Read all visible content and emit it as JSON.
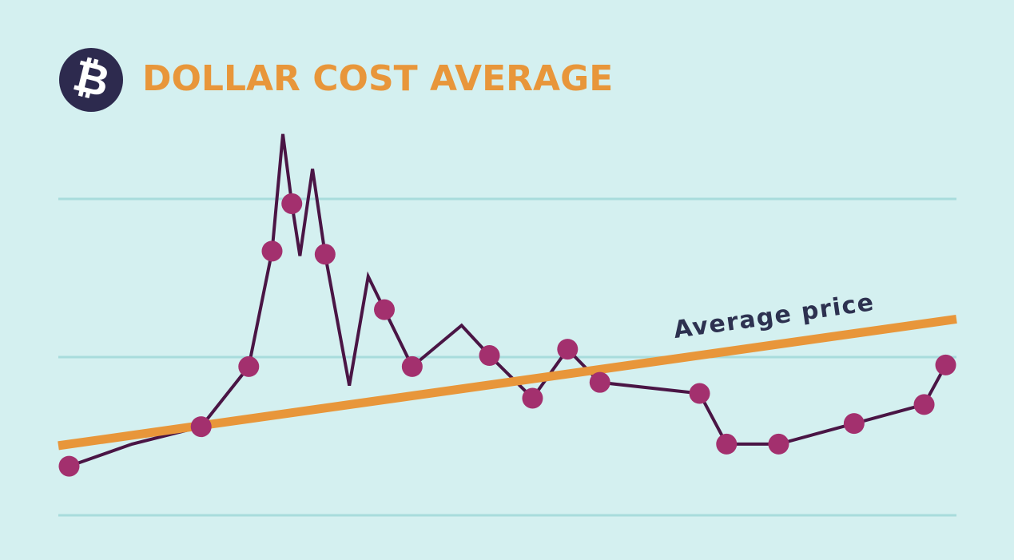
{
  "chart_data": {
    "type": "line",
    "logo": "₿",
    "title": "DOLLAR COST AVERAGE",
    "xlim": [
      0,
      100
    ],
    "ylim": [
      0,
      2.5
    ],
    "yticks": [
      0,
      1,
      2
    ],
    "grid": true,
    "price": {
      "color": "#4a1545",
      "x": [
        1.2,
        8.2,
        15.9,
        21.2,
        23.8,
        25.0,
        26.0,
        26.9,
        28.3,
        29.7,
        32.4,
        34.5,
        36.3,
        39.4,
        44.9,
        48.0,
        52.8,
        56.7,
        60.3,
        71.4,
        74.4,
        80.2,
        88.6,
        96.4,
        98.8
      ],
      "values": [
        0.31,
        0.45,
        0.56,
        0.94,
        1.67,
        2.41,
        1.97,
        1.64,
        2.19,
        1.65,
        0.82,
        1.51,
        1.3,
        0.94,
        1.2,
        1.01,
        0.74,
        1.05,
        0.84,
        0.77,
        0.45,
        0.45,
        0.58,
        0.7,
        0.95
      ]
    },
    "purchases": {
      "color": "#a3306e",
      "x": [
        1.2,
        15.9,
        21.2,
        23.8,
        26.0,
        29.7,
        36.3,
        39.4,
        48.0,
        52.8,
        56.7,
        60.3,
        71.4,
        74.4,
        80.2,
        88.6,
        96.4,
        98.8
      ],
      "values": [
        0.31,
        0.56,
        0.94,
        1.67,
        1.97,
        1.65,
        1.3,
        0.94,
        1.01,
        0.74,
        1.05,
        0.84,
        0.77,
        0.45,
        0.45,
        0.58,
        0.7,
        0.95
      ]
    },
    "average": {
      "label": "Average price",
      "color": "#e8963a",
      "x": [
        0,
        100
      ],
      "values": [
        0.44,
        1.24
      ]
    }
  }
}
